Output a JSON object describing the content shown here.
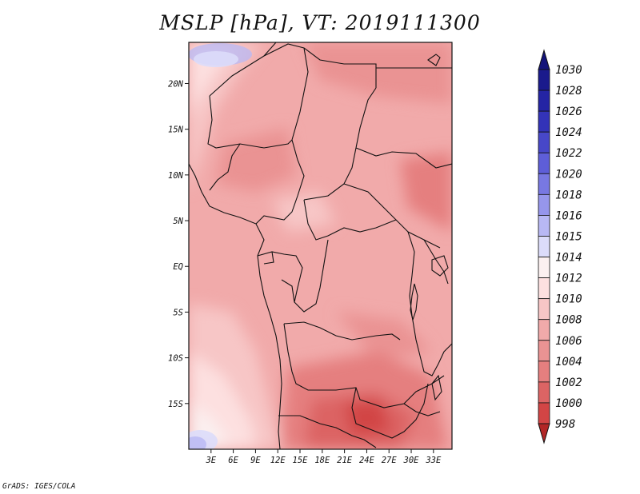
{
  "title": "MSLP [hPa], VT: 2019111300",
  "footer": "GrADS: IGES/COLA",
  "map": {
    "lon_range": [
      0,
      35.5
    ],
    "lat_range": [
      -20,
      24.5
    ],
    "lon_ticks": [
      {
        "value": 3,
        "label": "3E"
      },
      {
        "value": 6,
        "label": "6E"
      },
      {
        "value": 9,
        "label": "9E"
      },
      {
        "value": 12,
        "label": "12E"
      },
      {
        "value": 15,
        "label": "15E"
      },
      {
        "value": 18,
        "label": "18E"
      },
      {
        "value": 21,
        "label": "21E"
      },
      {
        "value": 24,
        "label": "24E"
      },
      {
        "value": 27,
        "label": "27E"
      },
      {
        "value": 30,
        "label": "30E"
      },
      {
        "value": 33,
        "label": "33E"
      }
    ],
    "lat_ticks": [
      {
        "value": 20,
        "label": "20N"
      },
      {
        "value": 15,
        "label": "15N"
      },
      {
        "value": 10,
        "label": "10N"
      },
      {
        "value": 5,
        "label": "5N"
      },
      {
        "value": 0,
        "label": "EQ"
      },
      {
        "value": -5,
        "label": "5S"
      },
      {
        "value": -10,
        "label": "10S"
      },
      {
        "value": -15,
        "label": "15S"
      }
    ]
  },
  "colorbar": {
    "levels": [
      {
        "label": "1030",
        "color": "#1a1a8c"
      },
      {
        "label": "1028",
        "color": "#2424a4"
      },
      {
        "label": "1026",
        "color": "#3333b8"
      },
      {
        "label": "1024",
        "color": "#4747c8"
      },
      {
        "label": "1022",
        "color": "#5e5ed8"
      },
      {
        "label": "1020",
        "color": "#7878e2"
      },
      {
        "label": "1018",
        "color": "#9696ec"
      },
      {
        "label": "1016",
        "color": "#b8b8f4"
      },
      {
        "label": "1015",
        "color": "#dcdcfa"
      },
      {
        "label": "1014",
        "color": "#fbf0f0"
      },
      {
        "label": "1012",
        "color": "#fde0e0"
      },
      {
        "label": "1010",
        "color": "#f7c6c6"
      },
      {
        "label": "1008",
        "color": "#f1aaaa"
      },
      {
        "label": "1006",
        "color": "#ea9393"
      },
      {
        "label": "1004",
        "color": "#e57f7f"
      },
      {
        "label": "1002",
        "color": "#dc6464"
      },
      {
        "label": "1000",
        "color": "#d24545"
      },
      {
        "label": "998",
        "color": "#c23030"
      }
    ],
    "top_color": "#14147a",
    "bottom_color": "#b22626"
  }
}
